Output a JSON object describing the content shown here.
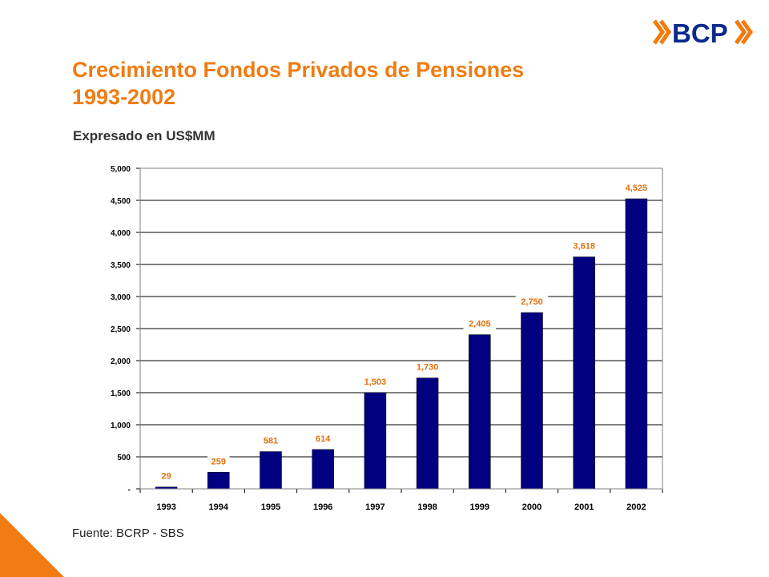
{
  "header": {
    "title_line1": "Crecimiento Fondos Privados de Pensiones",
    "title_line2": "1993-2002",
    "subtitle": "Expresado en US$MM"
  },
  "logo": {
    "text": "BCP",
    "color": "#0a2a8c",
    "chevron_color": "#f07c12"
  },
  "footer": {
    "source": "Fuente: BCRP - SBS"
  },
  "colors": {
    "accent": "#f07c12",
    "bar": "#000080",
    "label": "#e0700f"
  },
  "chart_data": {
    "type": "bar",
    "categories": [
      "1993",
      "1994",
      "1995",
      "1996",
      "1997",
      "1998",
      "1999",
      "2000",
      "2001",
      "2002"
    ],
    "values": [
      29,
      259,
      581,
      614,
      1503,
      1730,
      2405,
      2750,
      3618,
      4525
    ],
    "value_labels": [
      "29",
      "259",
      "581",
      "614",
      "1,503",
      "1,730",
      "2,405",
      "2,750",
      "3,618",
      "4,525"
    ],
    "yticks": [
      0,
      500,
      1000,
      1500,
      2000,
      2500,
      3000,
      3500,
      4000,
      4500,
      5000
    ],
    "ytick_labels": [
      "-",
      "500",
      "1,000",
      "1,500",
      "2,000",
      "2,500",
      "3,000",
      "3,500",
      "4,000",
      "4,500",
      "5,000"
    ],
    "ylim": [
      0,
      5000
    ],
    "grid": true,
    "legend": false
  }
}
